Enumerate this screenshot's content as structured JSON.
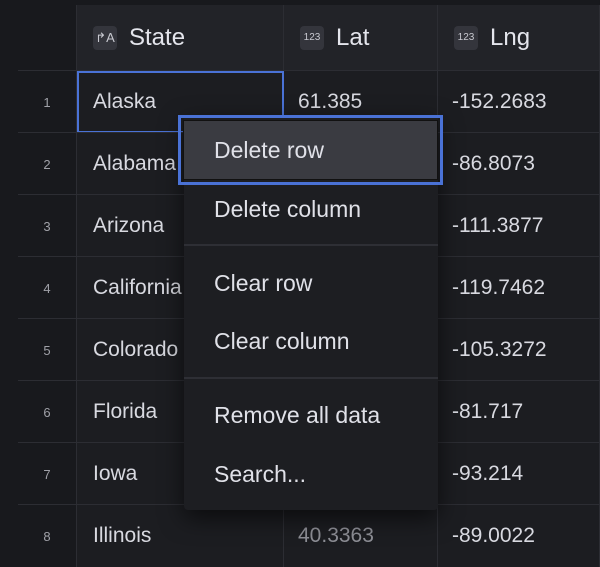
{
  "columns": [
    {
      "label": "State",
      "type_icon": "text-type-icon"
    },
    {
      "label": "Lat",
      "type_icon": "number-type-icon",
      "badge": "123"
    },
    {
      "label": "Lng",
      "type_icon": "number-type-icon",
      "badge": "123"
    }
  ],
  "rows": [
    {
      "n": "1",
      "state": "Alaska",
      "lat": "61.385",
      "lng": "-152.2683"
    },
    {
      "n": "2",
      "state": "Alabama",
      "lat": "",
      "lng": "-86.8073"
    },
    {
      "n": "3",
      "state": "Arizona",
      "lat": "",
      "lng": "-111.3877"
    },
    {
      "n": "4",
      "state": "California",
      "lat": "",
      "lng": "-119.7462"
    },
    {
      "n": "5",
      "state": "Colorado",
      "lat": "",
      "lng": "-105.3272"
    },
    {
      "n": "6",
      "state": "Florida",
      "lat": "",
      "lng": "-81.717"
    },
    {
      "n": "7",
      "state": "Iowa",
      "lat": "",
      "lng": "-93.214"
    },
    {
      "n": "8",
      "state": "Illinois",
      "lat": "40.3363",
      "lng": "-89.0022"
    }
  ],
  "context_menu": {
    "items": [
      "Delete row",
      "Delete column",
      "Clear row",
      "Clear column",
      "Remove all data",
      "Search..."
    ],
    "highlighted": "Delete row"
  },
  "colors": {
    "accent": "#4a72d6",
    "background": "#18191d"
  }
}
